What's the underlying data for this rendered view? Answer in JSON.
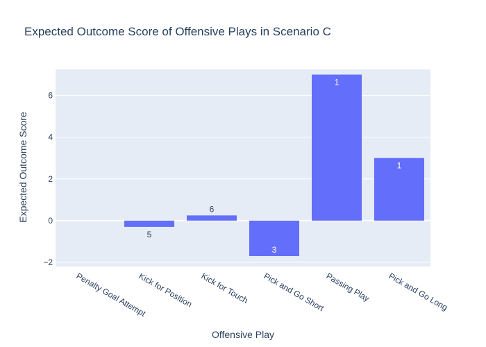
{
  "chart_data": {
    "type": "bar",
    "title": "Expected Outcome Score of Offensive Plays in Scenario C",
    "xlabel": "Offensive Play",
    "ylabel": "Expected Outcome Score",
    "categories": [
      "Penalty Goal Attempt",
      "Kick for Position",
      "Kick for Touch",
      "Pick and Go Short",
      "Passing Play",
      "Pick and Go Long"
    ],
    "values": [
      0,
      -0.3,
      0.25,
      -1.7,
      7.0,
      3.0
    ],
    "data_labels": [
      "",
      "5",
      "6",
      "3",
      "1",
      "1"
    ],
    "yticks": [
      -2,
      0,
      2,
      4,
      6
    ],
    "ytick_labels": [
      "−2",
      "0",
      "2",
      "4",
      "6"
    ],
    "ylim": [
      -2.2,
      7.25
    ],
    "grid": true,
    "colors": {
      "bar": "#636efa",
      "plot_bg": "#e5ecf6",
      "grid": "#ffffff",
      "text": "#2a3f5f"
    }
  }
}
